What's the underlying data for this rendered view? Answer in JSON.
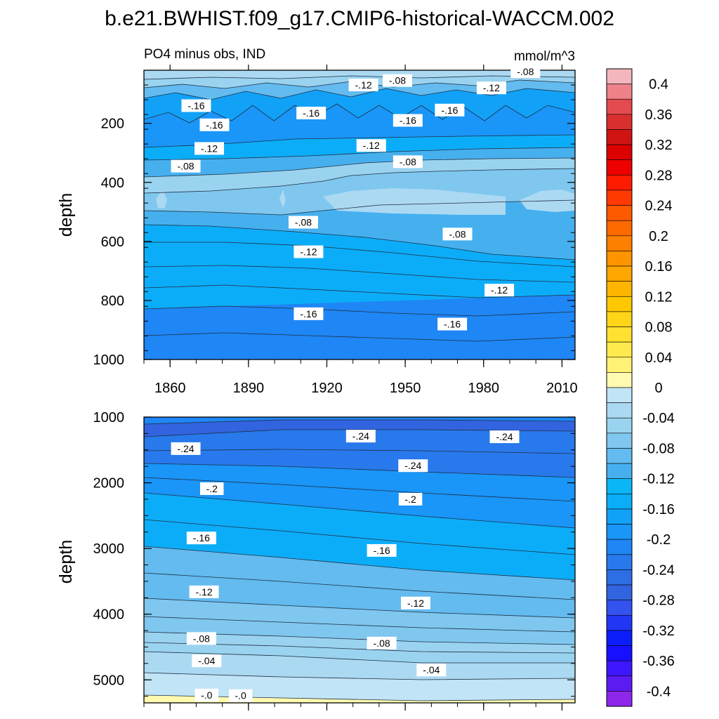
{
  "chart_data": {
    "type": "contour",
    "title": "b.e21.BWHIST.f09_g17.CMIP6-historical-WACCM.002",
    "subtitle_left": "PO4 minus obs, IND",
    "units": "mmol/m^3",
    "colorbar": {
      "levels": [
        "0.4",
        "0.36",
        "0.32",
        "0.28",
        "0.24",
        "0.2",
        "0.16",
        "0.12",
        "0.08",
        "0.04",
        "0",
        "-0.04",
        "-0.08",
        "-0.12",
        "-0.16",
        "-0.2",
        "-0.24",
        "-0.28",
        "-0.32",
        "-0.36",
        "-0.4"
      ],
      "range": [
        -0.42,
        0.42
      ],
      "boundary_step": 0.02,
      "colors": [
        "#f4b6bd",
        "#ee8289",
        "#e34b51",
        "#da2f2f",
        "#d01313",
        "#dd0000",
        "#ee0000",
        "#fe1b00",
        "#fe3a00",
        "#fd5a00",
        "#fd6a00",
        "#fe8000",
        "#fe9400",
        "#ffa600",
        "#feb500",
        "#fec800",
        "#ffd419",
        "#ffe12f",
        "#ffea4e",
        "#fff274",
        "#fffab0",
        "#c1e4f6",
        "#acd9f2",
        "#9ad3ef",
        "#7fc7ee",
        "#63bbef",
        "#46b0ef",
        "#0ab6f6",
        "#0cadf8",
        "#11a2f8",
        "#1a95f8",
        "#1f86f5",
        "#2879ec",
        "#2e6ee4",
        "#3264e0",
        "#3352ee",
        "#2237f5",
        "#0b1df9",
        "#1710ff",
        "#3d16fb",
        "#5c1bf2",
        "#8e27ea"
      ]
    },
    "panels": [
      {
        "name": "upper",
        "ylabel": "depth",
        "ylim": [
          1000,
          20
        ],
        "yticks": [
          "200",
          "400",
          "600",
          "800",
          "1000"
        ],
        "xlim": [
          1850,
          2015
        ],
        "xticks": [
          "1860",
          "1890",
          "1920",
          "1950",
          "1980",
          "2010"
        ],
        "contour_labels": [
          {
            "text": "-.16",
            "x": 1870,
            "y": 140
          },
          {
            "text": "-.12",
            "x": 1934,
            "y": 70
          },
          {
            "text": "-.08",
            "x": 1947,
            "y": 55
          },
          {
            "text": "-.16",
            "x": 1914,
            "y": 165
          },
          {
            "text": "-.16",
            "x": 1967,
            "y": 155
          },
          {
            "text": "-.12",
            "x": 1983,
            "y": 80
          },
          {
            "text": "-.08",
            "x": 1996,
            "y": 25
          },
          {
            "text": "-.16",
            "x": 1877,
            "y": 205
          },
          {
            "text": "-.16",
            "x": 1951,
            "y": 190
          },
          {
            "text": "-.12",
            "x": 1875,
            "y": 285
          },
          {
            "text": "-.12",
            "x": 1937,
            "y": 275
          },
          {
            "text": "-.08",
            "x": 1866,
            "y": 345
          },
          {
            "text": "-.08",
            "x": 1951,
            "y": 330
          },
          {
            "text": "-.08",
            "x": 1911,
            "y": 535
          },
          {
            "text": "-.08",
            "x": 1970,
            "y": 575
          },
          {
            "text": "-.12",
            "x": 1913,
            "y": 635
          },
          {
            "text": "-.12",
            "x": 1986,
            "y": 765
          },
          {
            "text": "-.16",
            "x": 1913,
            "y": 845
          },
          {
            "text": "-.16",
            "x": 1968,
            "y": 880
          }
        ],
        "zones": [
          {
            "level": "0 to -0.04",
            "from": 20,
            "to": 60
          },
          {
            "level": "-0.04 to -0.08",
            "from": 60,
            "to": 95
          },
          {
            "level": "-0.12 to -0.16",
            "from": 95,
            "to": 140
          },
          {
            "level": "-0.16 to -0.2",
            "from": 140,
            "to": 210
          },
          {
            "level": "-0.12 to -0.16",
            "from": 210,
            "to": 255
          },
          {
            "level": "-0.08 to -0.12",
            "from": 255,
            "to": 300
          },
          {
            "level": "-0.04 to -0.08",
            "from": 300,
            "to": 500
          },
          {
            "level": "-0.08 to -0.12",
            "from": 500,
            "to": 620
          },
          {
            "level": "-0.12 to -0.16",
            "from": 620,
            "to": 840
          },
          {
            "level": "-0.16 to -0.2",
            "from": 840,
            "to": 1000
          }
        ]
      },
      {
        "name": "lower",
        "ylabel": "depth",
        "ylim": [
          5350,
          1000
        ],
        "yticks": [
          "1000",
          "2000",
          "3000",
          "4000",
          "5000"
        ],
        "xlim": [
          1850,
          2015
        ],
        "contour_labels": [
          {
            "text": "-.24",
            "x": 1866,
            "y": 1480
          },
          {
            "text": "-.24",
            "x": 1933,
            "y": 1290
          },
          {
            "text": "-.24",
            "x": 1988,
            "y": 1300
          },
          {
            "text": "-.24",
            "x": 1953,
            "y": 1740
          },
          {
            "text": "-.2",
            "x": 1876,
            "y": 2090
          },
          {
            "text": "-.2",
            "x": 1952,
            "y": 2250
          },
          {
            "text": "-.16",
            "x": 1872,
            "y": 2840
          },
          {
            "text": "-.16",
            "x": 1941,
            "y": 3030
          },
          {
            "text": "-.12",
            "x": 1873,
            "y": 3660
          },
          {
            "text": "-.12",
            "x": 1954,
            "y": 3830
          },
          {
            "text": "-.08",
            "x": 1872,
            "y": 4370
          },
          {
            "text": "-.08",
            "x": 1941,
            "y": 4440
          },
          {
            "text": "-.04",
            "x": 1874,
            "y": 4710
          },
          {
            "text": "-.04",
            "x": 1960,
            "y": 4850
          },
          {
            "text": "-.0",
            "x": 1874,
            "y": 5230
          },
          {
            "text": "-.0",
            "x": 1887,
            "y": 5240
          }
        ],
        "zones": [
          {
            "level": "-0.2 to -0.24",
            "from": 1000,
            "to": 1250
          },
          {
            "level": "-0.24 to -0.28",
            "from": 1250,
            "to": 1800
          },
          {
            "level": "-0.2 to -0.24",
            "from": 1800,
            "to": 2300
          },
          {
            "level": "-0.16 to -0.2",
            "from": 2300,
            "to": 3000
          },
          {
            "level": "-0.12 to -0.16",
            "from": 3000,
            "to": 3800
          },
          {
            "level": "-0.08 to -0.12",
            "from": 3800,
            "to": 4500
          },
          {
            "level": "-0.04 to -0.08",
            "from": 4500,
            "to": 4950
          },
          {
            "level": "0 to -0.04",
            "from": 4950,
            "to": 5250
          },
          {
            "level": "0 to 0.04",
            "from": 5250,
            "to": 5350
          }
        ]
      }
    ]
  }
}
